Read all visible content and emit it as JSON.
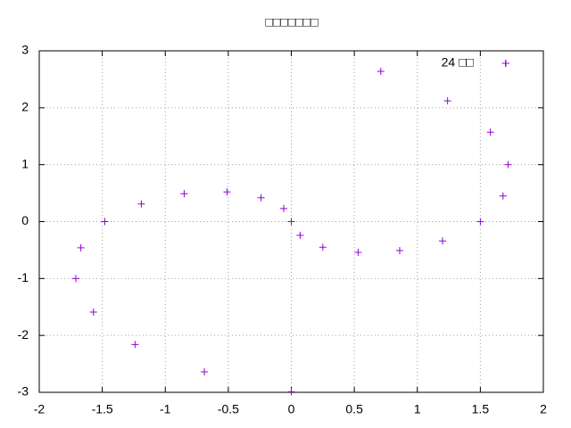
{
  "chart_data": {
    "type": "scatter",
    "title": "□□□□□□□",
    "series": [
      {
        "name": "24 □□",
        "color": "#9400d3",
        "x": [
          -1.71,
          -1.67,
          -1.57,
          -1.48,
          -1.24,
          -1.19,
          -0.85,
          -0.69,
          -0.51,
          -0.24,
          -0.06,
          0.0,
          0.0,
          0.07,
          0.25,
          0.53,
          0.71,
          0.86,
          1.2,
          1.24,
          1.5,
          1.58,
          1.68,
          1.7,
          1.72
        ],
        "values": [
          -1.0,
          -0.46,
          -1.59,
          0.0,
          -2.16,
          0.31,
          0.49,
          -2.64,
          0.52,
          0.42,
          0.23,
          0.0,
          -2.99,
          -0.24,
          -0.45,
          -0.54,
          2.64,
          -0.51,
          -0.34,
          2.12,
          0.0,
          1.57,
          0.45,
          2.78,
          1.0
        ]
      }
    ],
    "xlim": [
      -2,
      2
    ],
    "xticks": [
      -2,
      -1.5,
      -1,
      -0.5,
      0,
      0.5,
      1,
      1.5,
      2
    ],
    "ylim": [
      -3,
      3
    ],
    "yticks": [
      -3,
      -2,
      -1,
      0,
      1,
      2,
      3
    ],
    "grid": true,
    "legend": "top-right"
  }
}
